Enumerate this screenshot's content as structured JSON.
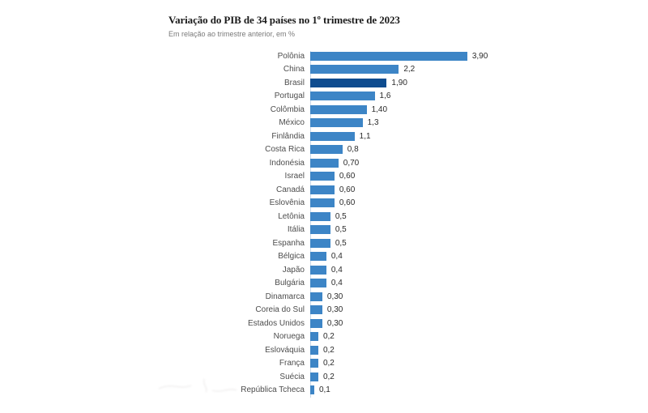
{
  "header": {
    "title": "Variação do PIB de 34 países no 1º trimestre de 2023",
    "subtitle": "Em relação ao trimestre anterior, em %"
  },
  "chart_data": {
    "type": "bar",
    "orientation": "horizontal",
    "title": "Variação do PIB de 34 países no 1º trimestre de 2023",
    "subtitle": "Em relação ao trimestre anterior, em %",
    "xlabel": "",
    "ylabel": "",
    "xlim": [
      0,
      4.2
    ],
    "grid": false,
    "legend": "none",
    "categories": [
      "Polônia",
      "China",
      "Brasil",
      "Portugal",
      "Colômbia",
      "México",
      "Finlândia",
      "Costa Rica",
      "Indonésia",
      "Israel",
      "Canadá",
      "Eslovênia",
      "Letônia",
      "Itália",
      "Espanha",
      "Bélgica",
      "Japão",
      "Bulgária",
      "Dinamarca",
      "Coreia do Sul",
      "Estados Unidos",
      "Noruega",
      "Eslováquia",
      "França",
      "Suécia",
      "República Tcheca"
    ],
    "values": [
      3.9,
      2.2,
      1.9,
      1.6,
      1.4,
      1.3,
      1.1,
      0.8,
      0.7,
      0.6,
      0.6,
      0.6,
      0.5,
      0.5,
      0.5,
      0.4,
      0.4,
      0.4,
      0.3,
      0.3,
      0.3,
      0.2,
      0.2,
      0.2,
      0.2,
      0.1
    ],
    "value_labels": [
      "3,90",
      "2,2",
      "1,90",
      "1,6",
      "1,40",
      "1,3",
      "1,1",
      "0,8",
      "0,70",
      "0,60",
      "0,60",
      "0,60",
      "0,5",
      "0,5",
      "0,5",
      "0,4",
      "0,4",
      "0,4",
      "0,30",
      "0,30",
      "0,30",
      "0,2",
      "0,2",
      "0,2",
      "0,2",
      "0,1"
    ],
    "highlight_category": "Brasil",
    "bar_color": "#3d85c6",
    "highlight_color": "#0e4c8f",
    "axis_line_color": "#c9d9ea"
  }
}
